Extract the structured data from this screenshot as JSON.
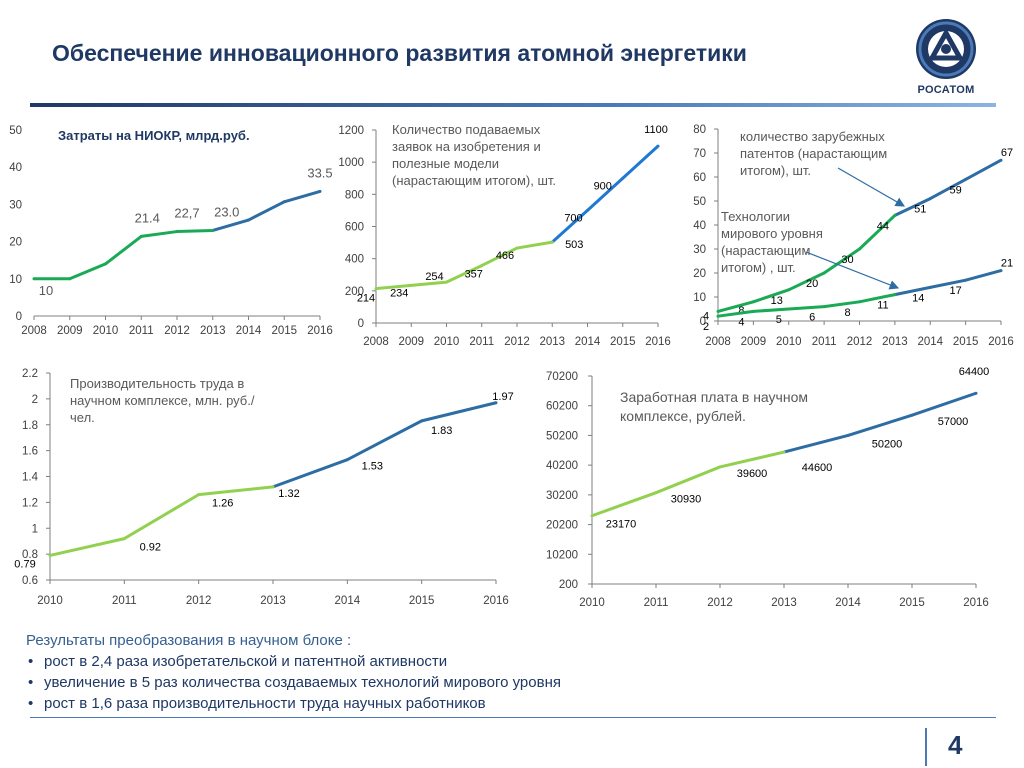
{
  "header": {
    "title": "Обеспечение инновационного развития атомной энергетики",
    "logo_text": "РОСАТОМ"
  },
  "chart_data": [
    {
      "type": "line",
      "title": "Затраты на НИОКР, млрд.руб.",
      "x": [
        "2008",
        "2009",
        "2010",
        "2011",
        "2012",
        "2013",
        "2014",
        "2015",
        "2016"
      ],
      "values": [
        10,
        10,
        14,
        21.4,
        22.7,
        23.0,
        25.8,
        30.7,
        33.5
      ],
      "data_labels": [
        {
          "index": 0,
          "text": "10"
        },
        {
          "index": 3,
          "text": "21.4"
        },
        {
          "index": 4,
          "text": "22,7"
        },
        {
          "index": 5,
          "text": "23.0"
        },
        {
          "index": 8,
          "text": "33.5"
        }
      ],
      "split_index": 5,
      "colors": [
        "#1aaa55",
        "#2e6da4"
      ],
      "ylim": [
        0,
        50
      ],
      "yticks": [
        "0",
        "10",
        "20",
        "30",
        "40",
        "50"
      ]
    },
    {
      "type": "line",
      "title": "Количество подаваемых заявок на изобретения и полезные модели (нарастающим итогом), шт.",
      "x": [
        "2008",
        "2009",
        "2010",
        "2011",
        "2012",
        "2013",
        "2014",
        "2015",
        "2016"
      ],
      "values": [
        214,
        234,
        254,
        357,
        466,
        503,
        700,
        900,
        1100
      ],
      "data_labels": [
        {
          "index": 0,
          "text": "214"
        },
        {
          "index": 1,
          "text": "234"
        },
        {
          "index": 2,
          "text": "254"
        },
        {
          "index": 3,
          "text": "357"
        },
        {
          "index": 4,
          "text": "466"
        },
        {
          "index": 5,
          "text": "503"
        },
        {
          "index": 6,
          "text": "700"
        },
        {
          "index": 7,
          "text": "900"
        },
        {
          "index": 8,
          "text": "1100"
        }
      ],
      "split_index": 5,
      "colors": [
        "#92d050",
        "#1f78d1"
      ],
      "ylim": [
        0,
        1200
      ],
      "yticks": [
        "0",
        "200",
        "400",
        "600",
        "800",
        "1000",
        "1200"
      ]
    },
    {
      "type": "line",
      "x": [
        "2008",
        "2009",
        "2010",
        "2011",
        "2012",
        "2013",
        "2014",
        "2015",
        "2016"
      ],
      "series": [
        {
          "name": "количество зарубежных патентов (нарастающим итогом), шт.",
          "values": [
            4,
            8,
            13,
            20,
            30,
            44,
            51,
            59,
            67
          ],
          "data_labels": [
            "4",
            "8",
            "13",
            "20",
            "30",
            "44",
            "51",
            "59",
            "67"
          ],
          "color": "#1aaa55",
          "color2": "#2e6da4"
        },
        {
          "name": "Технологии мирового уровня (нарастающим итогом) , шт.",
          "values": [
            2,
            4,
            5,
            6,
            8,
            11,
            14,
            17,
            21
          ],
          "data_labels": [
            "2",
            "4",
            "5",
            "6",
            "8",
            "11",
            "14",
            "17",
            "21"
          ],
          "color": "#1aaa55",
          "color2": "#2e6da4"
        }
      ],
      "split_index": 5,
      "ylim": [
        0,
        80
      ],
      "yticks": [
        "0",
        "10",
        "20",
        "30",
        "40",
        "50",
        "60",
        "70",
        "80"
      ]
    },
    {
      "type": "line",
      "title": "Производительность труда в научном комплексе, млн. руб./чел.",
      "x": [
        "2010",
        "2011",
        "2012",
        "2013",
        "2014",
        "2015",
        "2016"
      ],
      "values": [
        0.79,
        0.92,
        1.26,
        1.32,
        1.53,
        1.83,
        1.97
      ],
      "data_labels": [
        "0.79",
        "0.92",
        "1.26",
        "1.32",
        "1.53",
        "1.83",
        "1.97"
      ],
      "split_index": 3,
      "colors": [
        "#92d050",
        "#2e6da4"
      ],
      "ylim": [
        0.6,
        2.2
      ],
      "yticks": [
        "0.6",
        "0.8",
        "1",
        "1.2",
        "1.4",
        "1.6",
        "1.8",
        "2",
        "2.2"
      ]
    },
    {
      "type": "line",
      "title": "Заработная плата в научном комплексе, рублей.",
      "x": [
        "2010",
        "2011",
        "2012",
        "2013",
        "2014",
        "2015",
        "2016"
      ],
      "values": [
        23170,
        30930,
        39600,
        44600,
        50200,
        57000,
        64400
      ],
      "data_labels": [
        "23170",
        "30930",
        "39600",
        "44600",
        "50200",
        "57000",
        "64400"
      ],
      "split_index": 3,
      "colors": [
        "#92d050",
        "#2e6da4"
      ],
      "ylim": [
        200,
        70200
      ],
      "yticks": [
        "200",
        "10200",
        "20200",
        "30200",
        "40200",
        "50200",
        "60200",
        "70200"
      ]
    }
  ],
  "results": {
    "heading": "Результаты преобразования в научном блоке :",
    "items": [
      "рост в 2,4 раза изобретательской и патентной активности",
      "увеличение в 5 раз количества создаваемых технологий мирового уровня",
      "рост в 1,6 раза производительности труда научных работников"
    ]
  },
  "footer": {
    "page_number": "4"
  }
}
